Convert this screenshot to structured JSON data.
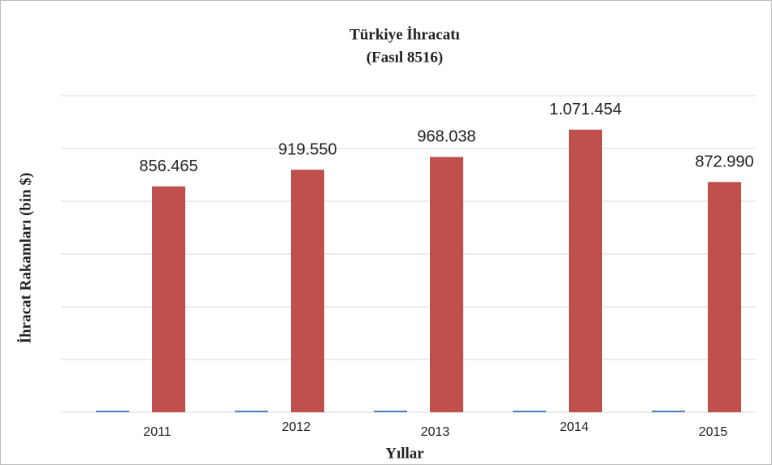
{
  "chart_data": {
    "type": "bar",
    "title": "Türkiye İhracatı",
    "subtitle": "(Fasıl 8516)",
    "x_label": "Yıllar",
    "y_label": "İhracat  Rakamları (bin $)",
    "categories": [
      "2011",
      "2012",
      "2013",
      "2014",
      "2015"
    ],
    "series": [
      {
        "color": "#4f81bd",
        "values": [
          2011,
          2012,
          2013,
          2014,
          2015
        ]
      },
      {
        "color": "#c0504d",
        "values": [
          856465,
          919550,
          968038,
          1071454,
          872990
        ],
        "value_labels": [
          "856.465",
          "919.550",
          "968.038",
          "1.071.454",
          "872.990"
        ]
      }
    ],
    "ylim": [
      0,
      1200000
    ],
    "yticks": [
      0,
      200000,
      400000,
      600000,
      800000,
      1000000,
      1200000
    ],
    "grid": true
  }
}
